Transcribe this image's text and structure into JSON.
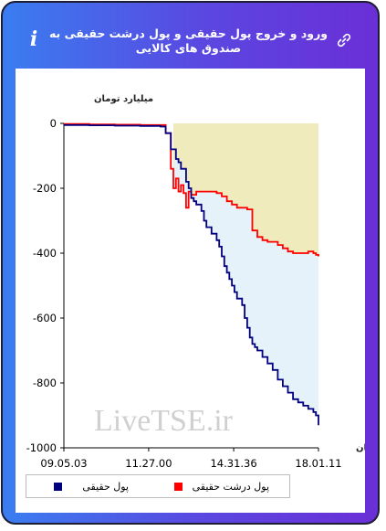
{
  "header": {
    "title": "ورود و خروج پول حقیقی و پول درشت حقیقی به صندوق های کالایی",
    "info_icon": "info-icon",
    "link_icon": "link-icon"
  },
  "chart_data": {
    "type": "line",
    "ylabel": "میلیارد تومان",
    "xlabel": "زمان",
    "ylim": [
      -1000,
      0
    ],
    "yticks": [
      0,
      -200,
      -400,
      -600,
      -800,
      -1000
    ],
    "ytick_labels": [
      "0",
      "-200",
      "-400",
      "-600",
      "-800",
      "-1000"
    ],
    "xlim": [
      0,
      100
    ],
    "xtick_positions": [
      0,
      33.3,
      66.7,
      100
    ],
    "xtick_labels": [
      "09.05.03",
      "11.27.00",
      "14.31.36",
      "18.01.11"
    ],
    "watermark": "LiveTSE.ir",
    "colors": {
      "real": "#000080",
      "big_real": "#ff0000",
      "big_area": "#f0ebbd",
      "real_area": "#e6f2fa"
    },
    "series": [
      {
        "name": "پول حقیقی",
        "color": "#000080",
        "x": [
          0,
          10,
          20,
          30,
          38,
          40,
          42,
          44,
          45,
          46,
          48,
          49,
          50,
          51,
          52,
          54,
          55,
          56,
          58,
          60,
          61,
          62,
          63,
          64,
          65,
          66,
          67,
          68,
          70,
          71,
          72,
          73,
          74,
          75,
          76,
          78,
          80,
          82,
          84,
          86,
          88,
          90,
          92,
          94,
          96,
          98,
          99,
          100
        ],
        "y": [
          -5,
          -6,
          -7,
          -8,
          -10,
          -30,
          -80,
          -110,
          -120,
          -140,
          -180,
          -200,
          -230,
          -240,
          -250,
          -270,
          -300,
          -320,
          -340,
          -360,
          -380,
          -410,
          -440,
          -460,
          -480,
          -500,
          -520,
          -540,
          -560,
          -600,
          -630,
          -660,
          -680,
          -690,
          -700,
          -720,
          -740,
          -760,
          -790,
          -810,
          -830,
          -850,
          -860,
          -870,
          -880,
          -890,
          -900,
          -930
        ]
      },
      {
        "name": "پول درشت حقیقی",
        "color": "#ff0000",
        "x": [
          0,
          10,
          20,
          30,
          38,
          40,
          42,
          43,
          44,
          45,
          46,
          47,
          48,
          49,
          50,
          52,
          55,
          58,
          60,
          62,
          64,
          66,
          68,
          70,
          72,
          74,
          76,
          78,
          80,
          82,
          84,
          86,
          88,
          90,
          92,
          94,
          96,
          98,
          99,
          100
        ],
        "y": [
          -2,
          -3,
          -4,
          -5,
          -5,
          -30,
          -140,
          -200,
          -170,
          -210,
          -190,
          -215,
          -260,
          -210,
          -220,
          -210,
          -210,
          -210,
          -215,
          -225,
          -240,
          -250,
          -260,
          -260,
          -265,
          -330,
          -350,
          -360,
          -365,
          -365,
          -375,
          -385,
          -395,
          -400,
          -400,
          -400,
          -395,
          -400,
          -405,
          -410
        ]
      }
    ]
  },
  "legend": {
    "real_label": "پول حقیقی",
    "big_real_label": "پول درشت حقیقی"
  }
}
